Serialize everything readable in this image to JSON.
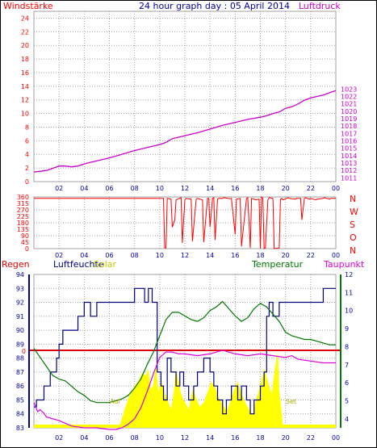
{
  "header": {
    "left_label": "Windstärke",
    "title": "24 hour graph day : 05 April 2014",
    "right_label": "Luftdruck"
  },
  "wind_dir_labels": [
    "N",
    "W",
    "S",
    "O",
    "N"
  ],
  "bottom_header": {
    "regen": "Regen",
    "luftfeuchte": "Luftfeuchte",
    "solar": "Solar",
    "temperatur": "Temperatur",
    "taupunkt": "Taupunkt"
  },
  "annotations": {
    "zero": "0",
    "auf": "Auf",
    "set": "Set"
  },
  "colors": {
    "wind": "#ff0000",
    "pressure": "#cc00cc",
    "humidity": "#000080",
    "solar": "#ffff00",
    "temperature": "#007700",
    "dewpoint": "#dd00dd",
    "rain": "#dd0000",
    "axis_text": "#0000aa",
    "grid": "#a0a0a0"
  },
  "chart_data": [
    {
      "type": "line",
      "title": "24 hour graph day : 05 April 2014",
      "x_ticks": [
        "02",
        "04",
        "06",
        "08",
        "10",
        "12",
        "14",
        "16",
        "18",
        "20",
        "22",
        "00"
      ],
      "x_range": [
        0,
        24
      ],
      "y_left": {
        "label": "Windstärke",
        "range": [
          0,
          25
        ],
        "ticks": [
          0,
          2,
          4,
          6,
          8,
          10,
          12,
          14,
          16,
          18,
          20,
          22,
          24
        ]
      },
      "y_right": {
        "label": "Luftdruck",
        "range": [
          1010.5,
          1033.5
        ],
        "ticks": [
          1011,
          1012,
          1013,
          1014,
          1015,
          1016,
          1017,
          1018,
          1019,
          1020,
          1021,
          1022,
          1023
        ]
      },
      "series": [
        {
          "name": "Luftdruck",
          "axis": "right",
          "x": [
            0,
            0.5,
            1,
            1.5,
            2,
            2.5,
            3,
            3.5,
            4,
            5,
            6,
            7,
            8,
            9,
            10,
            10.5,
            11,
            11.5,
            12,
            13,
            14,
            15,
            16,
            17,
            18,
            18.5,
            19,
            19.5,
            20,
            20.5,
            21,
            21.5,
            22,
            22.5,
            23,
            23.5,
            24
          ],
          "y": [
            1011.8,
            1011.9,
            1012.0,
            1012.3,
            1012.6,
            1012.6,
            1012.5,
            1012.6,
            1012.9,
            1013.3,
            1013.7,
            1014.2,
            1014.7,
            1015.1,
            1015.5,
            1015.8,
            1016.3,
            1016.5,
            1016.7,
            1017.1,
            1017.6,
            1018.1,
            1018.5,
            1018.9,
            1019.2,
            1019.4,
            1019.7,
            1019.9,
            1020.4,
            1020.6,
            1021.0,
            1021.5,
            1021.8,
            1022.0,
            1022.2,
            1022.5,
            1022.8
          ]
        }
      ]
    },
    {
      "type": "line",
      "title": "",
      "x_ticks": [
        "02",
        "04",
        "06",
        "08",
        "10",
        "12",
        "14",
        "16",
        "18",
        "20",
        "22",
        "00"
      ],
      "x_range": [
        0,
        24
      ],
      "y_left": {
        "label": "",
        "range": [
          0,
          360
        ],
        "ticks": [
          0,
          45,
          90,
          135,
          180,
          225,
          270,
          315,
          360
        ]
      },
      "y_right_labels": [
        "N",
        "W",
        "S",
        "O",
        "N"
      ],
      "series": [
        {
          "name": "",
          "x": [
            0,
            9.8
          ],
          "y": [
            350,
            350
          ]
        },
        {
          "name": "",
          "x": [
            9.8,
            10.3,
            10.4,
            10.5,
            10.6,
            10.9,
            11.0,
            11.2,
            11.3,
            11.7,
            11.8,
            12.0,
            12.1,
            12.5,
            12.6,
            12.9,
            13.0,
            13.4,
            13.5,
            13.8,
            13.9,
            14.0,
            14.2,
            14.3,
            14.4,
            14.6,
            14.7,
            15.0,
            15.1,
            15.6,
            15.7,
            16.0,
            16.1,
            16.4,
            16.5,
            16.9,
            17.0,
            17.2,
            17.3,
            17.5,
            17.6,
            17.9,
            18.0,
            18.1,
            18.2,
            18.3,
            18.4,
            18.6,
            18.7,
            19.0,
            19.1,
            19.5,
            19.6,
            19.7,
            19.8,
            20.2,
            20.3,
            20.8,
            20.9,
            21.2,
            21.3,
            21.5,
            21.6,
            21.9,
            22.0,
            22.4,
            22.5,
            23.0,
            23.1,
            23.5,
            23.6,
            24.0
          ],
          "y": [
            350,
            350,
            5,
            5,
            350,
            345,
            150,
            200,
            340,
            355,
            40,
            340,
            350,
            345,
            50,
            345,
            350,
            340,
            45,
            350,
            350,
            150,
            350,
            355,
            60,
            345,
            350,
            350,
            355,
            348,
            350,
            100,
            345,
            350,
            15,
            350,
            355,
            5,
            350,
            345,
            340,
            345,
            0,
            360,
            350,
            0,
            5,
            340,
            355,
            350,
            0,
            5,
            345,
            350,
            340,
            355,
            350,
            345,
            350,
            350,
            200,
            350,
            355,
            345,
            350,
            340,
            345,
            350,
            355,
            345,
            350,
            350
          ]
        }
      ]
    },
    {
      "type": "line",
      "title": "",
      "x_ticks": [
        "02",
        "04",
        "06",
        "08",
        "10",
        "12",
        "14",
        "16",
        "18",
        "20",
        "22",
        "00"
      ],
      "x_range": [
        0,
        24
      ],
      "y_left": {
        "label": "Luftfeuchte",
        "range": [
          83,
          94
        ],
        "ticks": [
          83,
          84,
          85,
          86,
          87,
          88,
          89,
          90,
          91,
          92,
          93,
          94
        ]
      },
      "y_right": {
        "label": "Temperatur",
        "range": [
          3.5,
          12
        ],
        "ticks": [
          4,
          5,
          6,
          7,
          8,
          9,
          10,
          11,
          12
        ]
      },
      "series": [
        {
          "name": "Luftfeuchte",
          "axis": "left",
          "x": [
            0,
            0.2,
            0.2,
            0.8,
            0.8,
            1.3,
            1.3,
            1.8,
            1.8,
            2.0,
            2.0,
            2.3,
            2.3,
            3.5,
            3.5,
            4.0,
            4.0,
            4.5,
            4.5,
            5.0,
            5.0,
            5.5,
            5.5,
            6.0,
            6.0,
            7.0,
            7.0,
            7.3,
            7.3,
            8.0,
            8.0,
            8.8,
            8.8,
            9.1,
            9.1,
            9.4,
            9.4,
            9.8,
            9.8,
            10.1,
            10.1,
            10.3,
            10.3,
            10.6,
            10.6,
            10.9,
            10.9,
            11.3,
            11.3,
            11.6,
            11.6,
            11.9,
            11.9,
            12.3,
            12.3,
            12.7,
            12.7,
            13.0,
            13.0,
            13.5,
            13.5,
            14.0,
            14.0,
            14.3,
            14.3,
            14.6,
            14.6,
            15.0,
            15.0,
            15.3,
            15.3,
            15.7,
            15.7,
            16.2,
            16.2,
            16.5,
            16.5,
            16.9,
            16.9,
            17.2,
            17.2,
            17.5,
            17.5,
            18.0,
            18.0,
            18.3,
            18.3,
            18.5,
            18.5,
            18.7,
            18.7,
            19.0,
            19.0,
            19.5,
            19.5,
            20.0,
            20.0,
            21.0,
            21.0,
            22.0,
            22.0,
            23.0,
            23.0,
            24.0
          ],
          "y": [
            84.5,
            84.5,
            85,
            85,
            86,
            86,
            87,
            87,
            88,
            88,
            89,
            89,
            90,
            90,
            91,
            91,
            92,
            92,
            91,
            91,
            92,
            92,
            92,
            92,
            92,
            92,
            92,
            92,
            92,
            92,
            93,
            93,
            92,
            92,
            93,
            93,
            92,
            92,
            87,
            87,
            86,
            86,
            85,
            85,
            88,
            88,
            87,
            87,
            86,
            86,
            87,
            87,
            86,
            86,
            85,
            85,
            86,
            86,
            87,
            87,
            88,
            88,
            87,
            87,
            86,
            86,
            85,
            85,
            84,
            84,
            85,
            85,
            86,
            86,
            85,
            85,
            86,
            86,
            85,
            85,
            84,
            84,
            85,
            85,
            86,
            86,
            87,
            87,
            91,
            91,
            92,
            92,
            91,
            91,
            92,
            92,
            92,
            92,
            92,
            92,
            92,
            92,
            93,
            93
          ]
        },
        {
          "name": "Temperatur",
          "axis": "right",
          "x": [
            0,
            0.5,
            1,
            1.5,
            2,
            2.5,
            3,
            3.5,
            4,
            4.5,
            5,
            5.5,
            6,
            6.5,
            7,
            7.5,
            8,
            8.5,
            9,
            9.5,
            10,
            10.5,
            11,
            11.5,
            12,
            12.5,
            13,
            13.5,
            14,
            14.5,
            15,
            15.5,
            16,
            16.5,
            17,
            17.5,
            18,
            18.5,
            19,
            19.5,
            20,
            20.5,
            21,
            21.5,
            22,
            22.5,
            23,
            23.5,
            24
          ],
          "y": [
            7.9,
            7.4,
            6.9,
            6.4,
            6.2,
            6.1,
            5.8,
            5.5,
            5.3,
            5.0,
            4.9,
            4.9,
            4.9,
            5.0,
            5.1,
            5.3,
            5.7,
            6.2,
            7.0,
            7.7,
            8.6,
            9.5,
            9.9,
            9.9,
            9.7,
            9.5,
            9.4,
            9.6,
            10.0,
            10.2,
            10.5,
            10.1,
            9.7,
            9.4,
            9.6,
            10.1,
            10.4,
            10.2,
            9.8,
            9.4,
            8.8,
            8.6,
            8.5,
            8.4,
            8.4,
            8.3,
            8.2,
            8.1,
            8.1
          ]
        },
        {
          "name": "Taupunkt",
          "axis": "right",
          "x": [
            0,
            0.3,
            0.5,
            0.8,
            1,
            2,
            3,
            4,
            5,
            6,
            6.5,
            7,
            7.5,
            8,
            8.5,
            9,
            9.5,
            10,
            10.5,
            11,
            11.5,
            12,
            13,
            14,
            15,
            16,
            17,
            18,
            19,
            20,
            20.5,
            21,
            22,
            23,
            24
          ],
          "y": [
            4.9,
            4.4,
            4.5,
            4.3,
            4.1,
            3.9,
            3.6,
            3.5,
            3.5,
            3.4,
            3.4,
            3.5,
            3.7,
            4.0,
            4.6,
            5.5,
            6.5,
            7.4,
            7.7,
            7.7,
            7.6,
            7.6,
            7.5,
            7.6,
            7.8,
            7.6,
            7.5,
            7.6,
            7.5,
            7.4,
            7.5,
            7.3,
            7.2,
            7.1,
            7.1
          ]
        },
        {
          "name": "Solar",
          "axis": "none",
          "x": [
            6.8,
            7.0,
            7.5,
            8.0,
            8.3,
            8.6,
            8.9,
            9.1,
            9.3,
            9.5,
            9.7,
            9.9,
            10.1,
            10.3,
            10.5,
            10.7,
            10.9,
            11.1,
            11.3,
            11.5,
            11.7,
            11.9,
            12.1,
            12.3,
            12.6,
            12.9,
            13.2,
            13.5,
            13.8,
            14.1,
            14.4,
            14.7,
            15.0,
            15.3,
            15.6,
            15.9,
            16.2,
            16.5,
            16.8,
            17.1,
            17.4,
            17.7,
            18.0,
            18.3,
            18.6,
            18.9,
            19.2,
            19.4,
            19.5,
            19.7,
            19.8
          ],
          "y": [
            0.02,
            0.12,
            0.35,
            0.5,
            0.55,
            0.65,
            0.62,
            0.7,
            0.45,
            0.52,
            0.75,
            0.42,
            0.55,
            0.48,
            0.38,
            0.3,
            0.22,
            0.4,
            0.7,
            0.55,
            0.4,
            0.33,
            0.28,
            0.22,
            0.45,
            0.35,
            0.25,
            0.3,
            0.42,
            0.55,
            0.48,
            0.35,
            0.28,
            0.2,
            0.3,
            0.45,
            0.55,
            0.4,
            0.3,
            0.22,
            0.15,
            0.35,
            0.5,
            0.7,
            0.55,
            0.4,
            0.75,
            0.9,
            0.45,
            0.18,
            0.0
          ]
        }
      ],
      "reference_line": {
        "name": "Regen",
        "value": 0
      }
    }
  ]
}
